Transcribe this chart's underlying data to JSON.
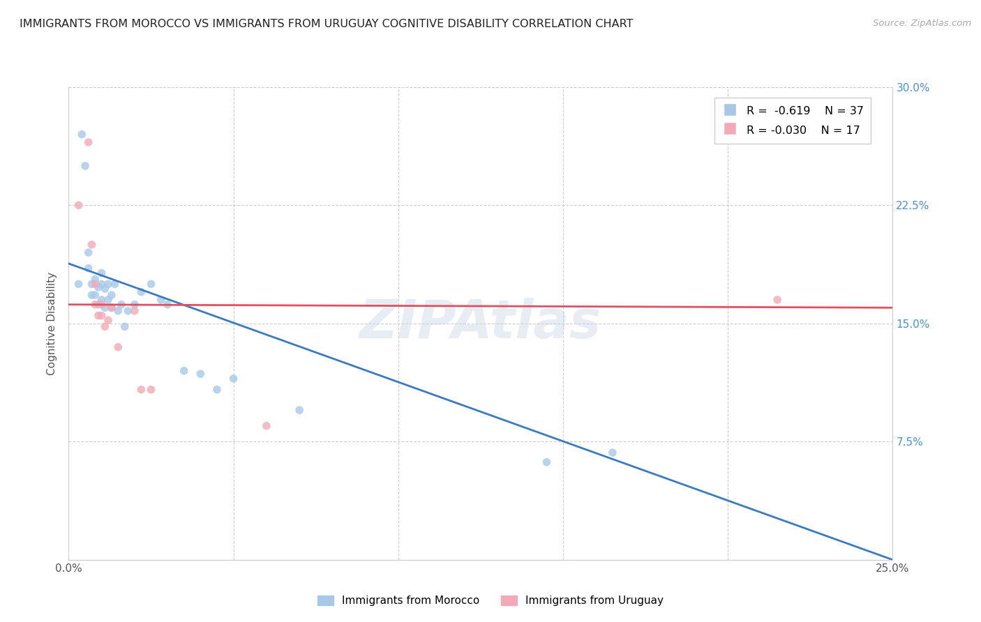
{
  "title": "IMMIGRANTS FROM MOROCCO VS IMMIGRANTS FROM URUGUAY COGNITIVE DISABILITY CORRELATION CHART",
  "source": "Source: ZipAtlas.com",
  "ylabel": "Cognitive Disability",
  "xlim": [
    0.0,
    0.25
  ],
  "ylim": [
    0.0,
    0.3
  ],
  "morocco_color": "#a8c8e8",
  "uruguay_color": "#f2aab8",
  "morocco_line_color": "#3a7bbf",
  "uruguay_line_color": "#e05060",
  "legend_r_morocco": "R =  -0.619",
  "legend_n_morocco": "N = 37",
  "legend_r_uruguay": "R = -0.030",
  "legend_n_uruguay": "N = 17",
  "morocco_scatter_x": [
    0.003,
    0.004,
    0.005,
    0.006,
    0.006,
    0.007,
    0.007,
    0.008,
    0.008,
    0.009,
    0.009,
    0.01,
    0.01,
    0.01,
    0.011,
    0.011,
    0.012,
    0.012,
    0.013,
    0.013,
    0.014,
    0.015,
    0.016,
    0.017,
    0.018,
    0.02,
    0.022,
    0.025,
    0.028,
    0.03,
    0.035,
    0.04,
    0.045,
    0.05,
    0.07,
    0.145,
    0.165
  ],
  "morocco_scatter_y": [
    0.175,
    0.27,
    0.25,
    0.195,
    0.185,
    0.175,
    0.168,
    0.178,
    0.168,
    0.173,
    0.162,
    0.182,
    0.175,
    0.165,
    0.172,
    0.16,
    0.175,
    0.165,
    0.168,
    0.16,
    0.175,
    0.158,
    0.162,
    0.148,
    0.158,
    0.162,
    0.17,
    0.175,
    0.165,
    0.162,
    0.12,
    0.118,
    0.108,
    0.115,
    0.095,
    0.062,
    0.068
  ],
  "uruguay_scatter_x": [
    0.003,
    0.006,
    0.007,
    0.008,
    0.008,
    0.009,
    0.01,
    0.01,
    0.011,
    0.012,
    0.013,
    0.015,
    0.02,
    0.022,
    0.025,
    0.06,
    0.215
  ],
  "uruguay_scatter_y": [
    0.225,
    0.265,
    0.2,
    0.175,
    0.162,
    0.155,
    0.162,
    0.155,
    0.148,
    0.152,
    0.16,
    0.135,
    0.158,
    0.108,
    0.108,
    0.085,
    0.165
  ],
  "morocco_line_x": [
    0.0,
    0.25
  ],
  "morocco_line_y": [
    0.188,
    0.0
  ],
  "uruguay_line_x": [
    0.0,
    0.25
  ],
  "uruguay_line_y": [
    0.162,
    0.16
  ]
}
